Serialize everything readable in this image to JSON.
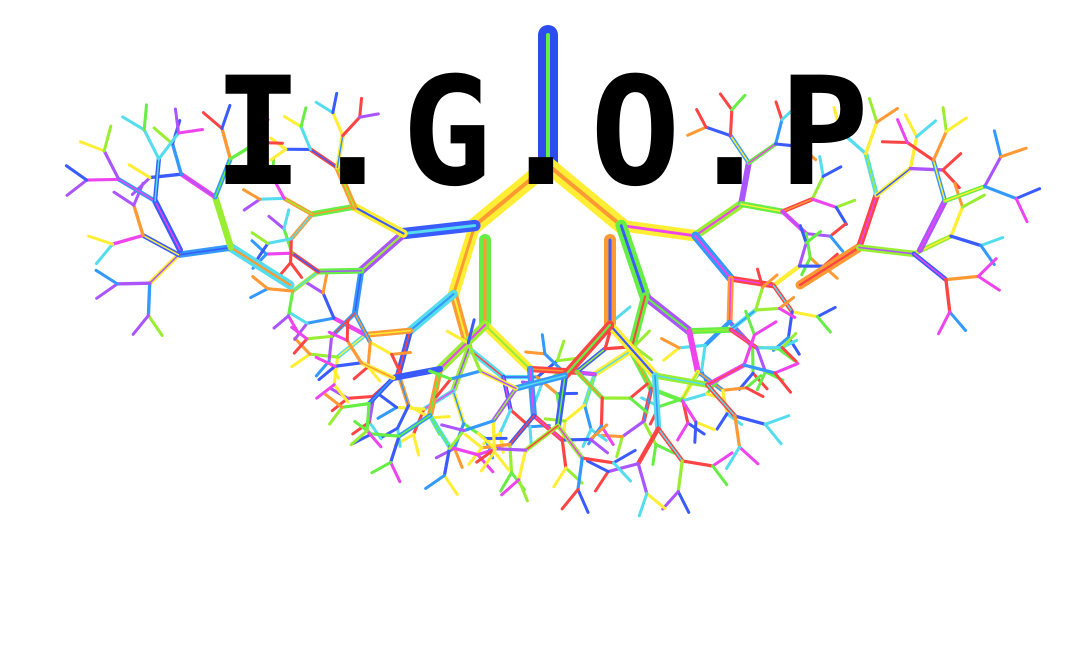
{
  "logo": {
    "title": "I.G.O.P",
    "background": "#ffffff",
    "text_color": "#000000",
    "trunk_color": "#2c4cf0",
    "branch_palette": [
      "#ff4444",
      "#3a5bff",
      "#66ee44",
      "#aa55ff",
      "#ffee33",
      "#ff9933",
      "#55ddee",
      "#ee44ee",
      "#3399ff",
      "#99ee33"
    ]
  }
}
